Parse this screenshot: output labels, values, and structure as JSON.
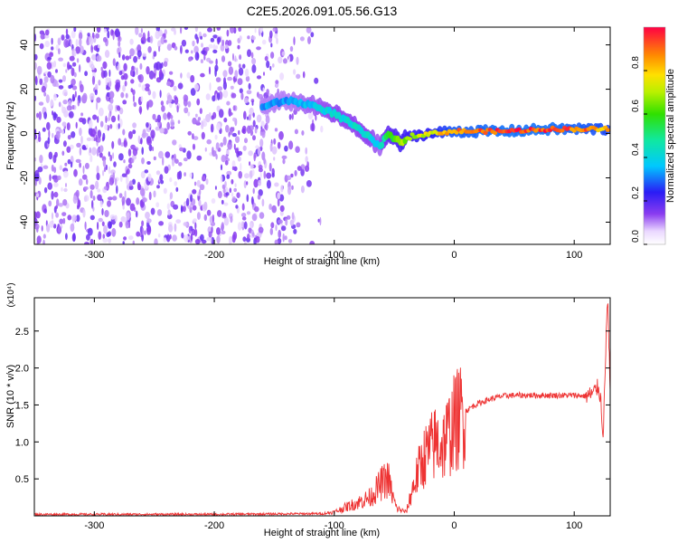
{
  "title": "C2E5.2026.091.05.56.G13",
  "chart_data": [
    {
      "type": "heatmap",
      "xlabel": "Height of straight line (km)",
      "ylabel": "Frequency (Hz)",
      "xlim": [
        -350,
        130
      ],
      "ylim": [
        -50,
        48
      ],
      "xticks": [
        -300,
        -200,
        -100,
        0,
        100
      ],
      "yticks": [
        -40,
        -20,
        0,
        20,
        40
      ],
      "colorbar": {
        "label": "Normalized spectral amplitude",
        "range": [
          0,
          1
        ],
        "ticks": [
          "0.0",
          "0.2",
          "0.4",
          "0.6",
          "0.8"
        ],
        "colormap": "rainbow"
      },
      "noise_region_x": [
        -350,
        -110
      ],
      "ridge": [
        {
          "x": -160,
          "y": 12,
          "a": 0.35
        },
        {
          "x": -140,
          "y": 15,
          "a": 0.35
        },
        {
          "x": -120,
          "y": 13,
          "a": 0.4
        },
        {
          "x": -100,
          "y": 9,
          "a": 0.45
        },
        {
          "x": -85,
          "y": 4,
          "a": 0.45
        },
        {
          "x": -70,
          "y": -2,
          "a": 0.45
        },
        {
          "x": -62,
          "y": -6,
          "a": 0.4
        },
        {
          "x": -55,
          "y": 0,
          "a": 0.6
        },
        {
          "x": -45,
          "y": -4,
          "a": 0.7
        },
        {
          "x": -35,
          "y": -1,
          "a": 0.75
        },
        {
          "x": -20,
          "y": 0,
          "a": 0.8
        },
        {
          "x": 0,
          "y": 1,
          "a": 0.95
        },
        {
          "x": 40,
          "y": 1,
          "a": 1.0
        },
        {
          "x": 80,
          "y": 2,
          "a": 1.0
        },
        {
          "x": 110,
          "y": 2,
          "a": 0.95
        },
        {
          "x": 130,
          "y": 2,
          "a": 0.9
        }
      ]
    },
    {
      "type": "line",
      "xlabel": "Height of straight line (km)",
      "ylabel": "SNR (10 * v/v)",
      "y_multiplier": "(x10⁴)",
      "xlim": [
        -350,
        130
      ],
      "ylim": [
        0,
        2.95
      ],
      "xticks": [
        -300,
        -200,
        -100,
        0,
        100
      ],
      "yticks": [
        0.5,
        1.0,
        1.5,
        2.0,
        2.5
      ],
      "series": [
        {
          "color": "#ee3333",
          "x": [
            -350,
            -200,
            -110,
            -100,
            -90,
            -80,
            -70,
            -65,
            -60,
            -55,
            -52,
            -48,
            -45,
            -40,
            -35,
            -30,
            -25,
            -20,
            -15,
            -10,
            -5,
            0,
            5,
            10,
            15,
            20,
            30,
            40,
            50,
            60,
            80,
            100,
            110,
            115,
            118,
            120,
            122,
            124,
            125,
            126,
            127,
            128,
            130
          ],
          "y": [
            0.02,
            0.02,
            0.03,
            0.05,
            0.12,
            0.18,
            0.25,
            0.35,
            0.45,
            0.5,
            0.3,
            0.1,
            0.08,
            0.05,
            0.35,
            0.6,
            0.8,
            0.9,
            1.0,
            0.95,
            1.1,
            1.25,
            1.35,
            1.42,
            1.48,
            1.52,
            1.58,
            1.62,
            1.63,
            1.63,
            1.63,
            1.63,
            1.62,
            1.65,
            1.7,
            1.75,
            1.6,
            1.1,
            1.5,
            2.0,
            2.7,
            2.9,
            1.62
          ]
        }
      ]
    }
  ]
}
